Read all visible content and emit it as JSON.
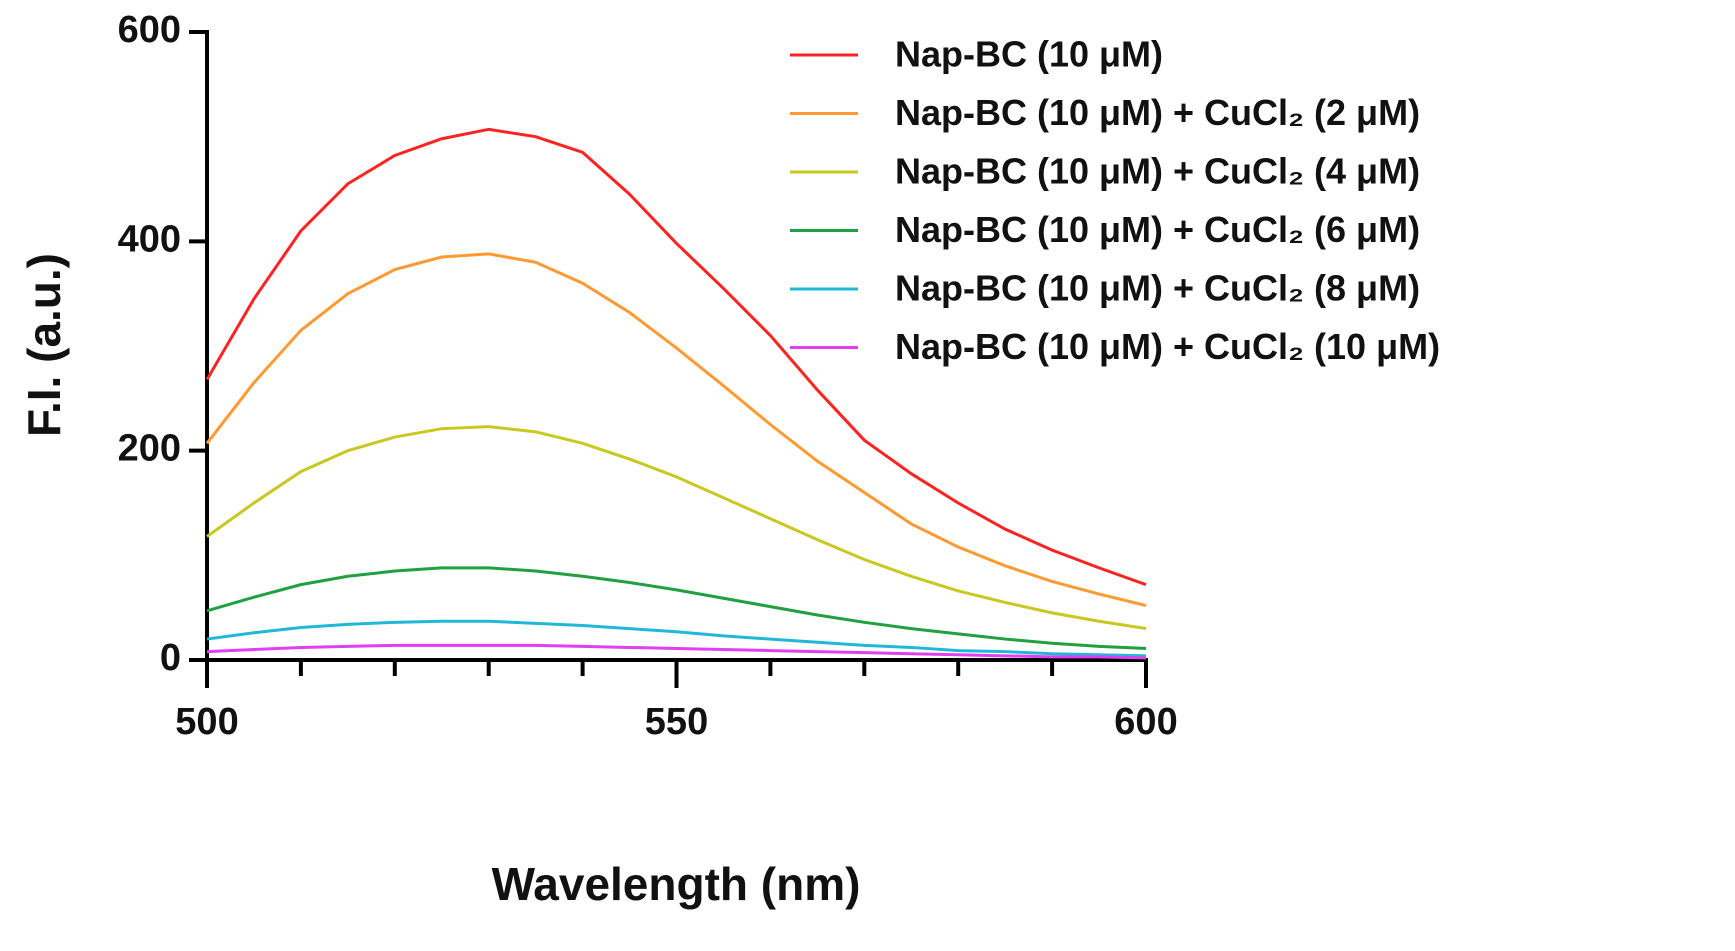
{
  "chart_data": {
    "type": "line",
    "xlabel": "Wavelength (nm)",
    "ylabel": "F.I. (a.u.)",
    "x": [
      500,
      505,
      510,
      515,
      520,
      525,
      530,
      535,
      540,
      545,
      550,
      555,
      560,
      565,
      570,
      575,
      580,
      585,
      590,
      595,
      600
    ],
    "xlim": [
      500,
      600
    ],
    "xticks": [
      500,
      550,
      600
    ],
    "xminorticks": [
      510,
      520,
      530,
      540,
      560,
      570,
      580,
      590
    ],
    "ylim": [
      0,
      600
    ],
    "yticks": [
      0,
      200,
      400,
      600
    ],
    "legend": "upper right",
    "grid": false,
    "series": [
      {
        "name": "Nap-BC (10 μM)",
        "color": "#ff2222",
        "values": [
          268,
          345,
          410,
          455,
          482,
          498,
          507,
          500,
          485,
          445,
          398,
          355,
          310,
          258,
          210,
          178,
          150,
          125,
          105,
          88,
          72
        ]
      },
      {
        "name": "Nap-BC (10 μM) + CuCl₂ (2 μM)",
        "color": "#ff9a30",
        "values": [
          207,
          265,
          315,
          350,
          373,
          385,
          388,
          380,
          360,
          332,
          298,
          262,
          225,
          190,
          160,
          130,
          108,
          90,
          75,
          63,
          52
        ]
      },
      {
        "name": "Nap-BC (10 μM) + CuCl₂ (4 μM)",
        "color": "#c8c820",
        "values": [
          118,
          150,
          180,
          200,
          213,
          221,
          223,
          218,
          207,
          192,
          175,
          155,
          135,
          115,
          96,
          80,
          66,
          55,
          45,
          37,
          30
        ]
      },
      {
        "name": "Nap-BC (10 μM) + CuCl₂ (6 μM)",
        "color": "#20a040",
        "values": [
          47,
          60,
          72,
          80,
          85,
          88,
          88,
          85,
          80,
          74,
          67,
          59,
          51,
          43,
          36,
          30,
          25,
          20,
          16,
          13,
          11
        ]
      },
      {
        "name": "Nap-BC (10 μM) + CuCl₂ (8 μM)",
        "color": "#20b8d8",
        "values": [
          20,
          26,
          31,
          34,
          36,
          37,
          37,
          35,
          33,
          30,
          27,
          23,
          20,
          17,
          14,
          12,
          9,
          8,
          6,
          5,
          4
        ]
      },
      {
        "name": "Nap-BC (10 μM) + CuCl₂ (10 μM)",
        "color": "#e040f0",
        "values": [
          8,
          10,
          12,
          13,
          14,
          14,
          14,
          14,
          13,
          12,
          11,
          10,
          9,
          8,
          7,
          6,
          5,
          4,
          3,
          3,
          2
        ]
      }
    ]
  }
}
